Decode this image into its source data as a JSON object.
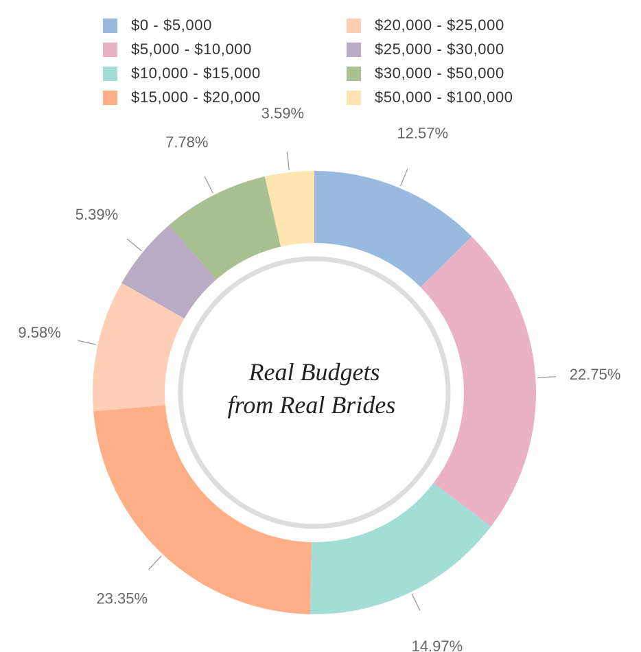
{
  "chart_data": {
    "type": "pie",
    "donut": true,
    "center_text": [
      "Real Budgets",
      "from Real Brides"
    ],
    "legend_position": "top",
    "slices": [
      {
        "label": "$0 - $5,000",
        "value": 12.57,
        "display": "12.57%",
        "color": "#99badf"
      },
      {
        "label": "$5,000 - $10,000",
        "value": 22.75,
        "display": "22.75%",
        "color": "#ebb1c5"
      },
      {
        "label": "$10,000 - $15,000",
        "value": 14.97,
        "display": "14.97%",
        "color": "#a2ddd6"
      },
      {
        "label": "$15,000 - $20,000",
        "value": 23.35,
        "display": "23.35%",
        "color": "#ffae86"
      },
      {
        "label": "$20,000 - $25,000",
        "value": 9.58,
        "display": "9.58%",
        "color": "#ffceb6"
      },
      {
        "label": "$25,000 - $30,000",
        "value": 5.39,
        "display": "5.39%",
        "color": "#baacc4"
      },
      {
        "label": "$30,000 - $50,000",
        "value": 7.78,
        "display": "7.78%",
        "color": "#a9c190"
      },
      {
        "label": "$50,000 - $100,000",
        "value": 3.59,
        "display": "3.59%",
        "color": "#ffe5b2"
      }
    ]
  }
}
